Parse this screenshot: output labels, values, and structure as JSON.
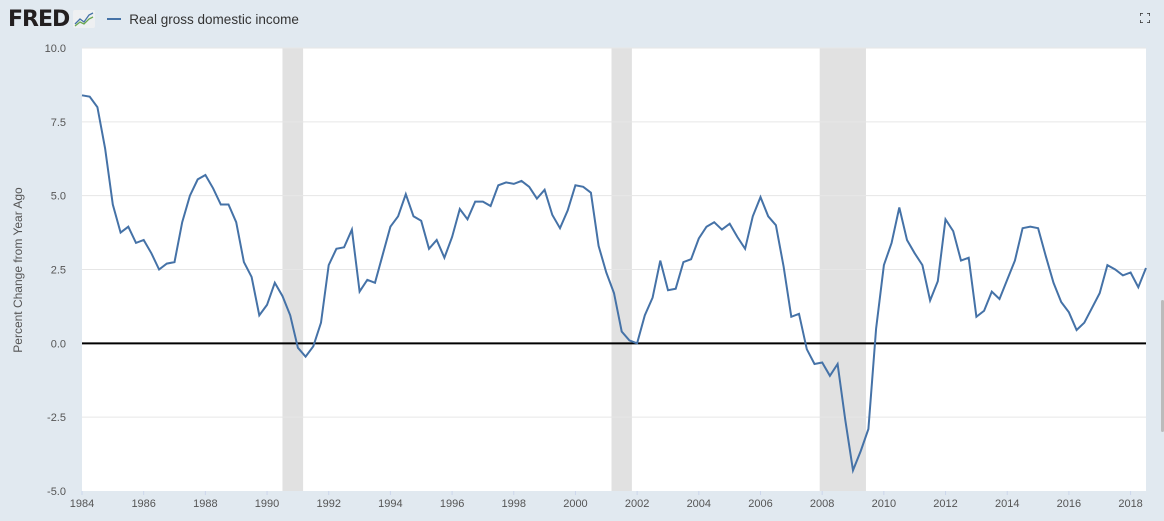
{
  "header": {
    "logo": "FRED",
    "legend_label": "Real gross domestic income"
  },
  "colors": {
    "series": "#4572a7",
    "recession": "#e1e1e1",
    "background": "#e1e9f0"
  },
  "icons": {
    "logo": "chart-line-icon",
    "fullscreen": "fullscreen-icon"
  },
  "chart_data": {
    "type": "line",
    "title": "",
    "xlabel": "",
    "ylabel": "Percent Change from Year Ago",
    "xlim": [
      1984,
      2018.5
    ],
    "ylim": [
      -5,
      10
    ],
    "grid": true,
    "legend": "top-left",
    "yticks": [
      "-5.0",
      "-2.5",
      "0.0",
      "2.5",
      "5.0",
      "7.5",
      "10.0"
    ],
    "ytick_values": [
      -5,
      -2.5,
      0,
      2.5,
      5,
      7.5,
      10
    ],
    "xticks": [
      "1984",
      "1986",
      "1988",
      "1990",
      "1992",
      "1994",
      "1996",
      "1998",
      "2000",
      "2002",
      "2004",
      "2006",
      "2008",
      "2010",
      "2012",
      "2014",
      "2016",
      "2018"
    ],
    "recessions": [
      [
        1990.5,
        1991.17
      ],
      [
        2001.17,
        2001.83
      ],
      [
        2007.92,
        2009.42
      ]
    ],
    "series": [
      {
        "name": "Real gross domestic income",
        "start": 1984.0,
        "step": 0.25,
        "values": [
          8.4,
          8.35,
          8.0,
          6.6,
          4.7,
          3.75,
          3.95,
          3.4,
          3.5,
          3.05,
          2.5,
          2.7,
          2.75,
          4.1,
          5.0,
          5.55,
          5.7,
          5.25,
          4.7,
          4.7,
          4.1,
          2.75,
          2.25,
          0.95,
          1.3,
          2.05,
          1.6,
          0.95,
          -0.15,
          -0.45,
          -0.1,
          0.7,
          2.65,
          3.2,
          3.25,
          3.85,
          1.75,
          2.15,
          2.05,
          3.0,
          3.95,
          4.3,
          5.05,
          4.3,
          4.15,
          3.2,
          3.5,
          2.9,
          3.6,
          4.55,
          4.2,
          4.8,
          4.8,
          4.65,
          5.35,
          5.45,
          5.4,
          5.5,
          5.3,
          4.9,
          5.2,
          4.35,
          3.9,
          4.5,
          5.35,
          5.3,
          5.1,
          3.3,
          2.4,
          1.7,
          0.4,
          0.1,
          0.0,
          0.95,
          1.55,
          2.8,
          1.8,
          1.85,
          2.75,
          2.85,
          3.55,
          3.95,
          4.1,
          3.85,
          4.05,
          3.6,
          3.2,
          4.3,
          4.95,
          4.3,
          4.0,
          2.6,
          0.9,
          1.0,
          -0.2,
          -0.7,
          -0.65,
          -1.1,
          -0.7,
          -2.6,
          -4.3,
          -3.65,
          -2.9,
          0.5,
          2.65,
          3.4,
          4.6,
          3.5,
          3.05,
          2.65,
          1.45,
          2.1,
          4.2,
          3.8,
          2.8,
          2.9,
          0.9,
          1.1,
          1.75,
          1.5,
          2.15,
          2.8,
          3.9,
          3.95,
          3.9,
          2.95,
          2.05,
          1.4,
          1.05,
          0.45,
          0.7,
          1.2,
          1.7,
          2.65,
          2.5,
          2.3,
          2.4,
          1.9,
          2.55
        ]
      }
    ]
  }
}
